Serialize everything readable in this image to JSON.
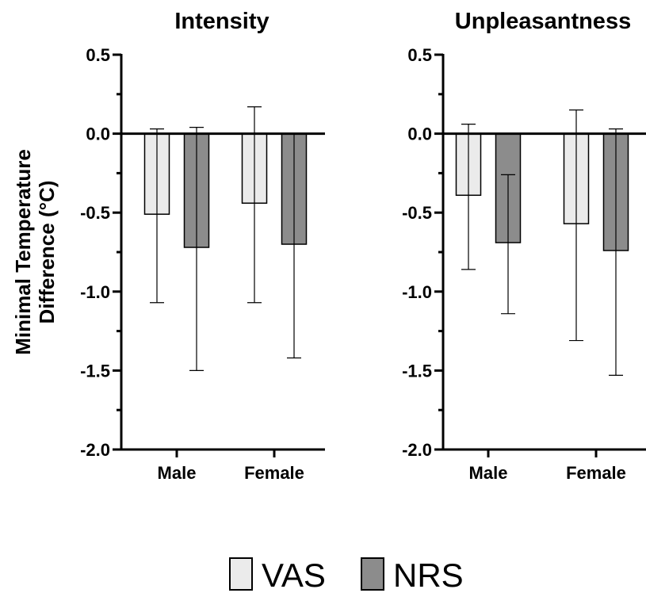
{
  "y_axis_title_lines": [
    "Minimal Temperature",
    "Difference (°C)"
  ],
  "colors": {
    "VAS": "#ebebeb",
    "NRS": "#8c8c8c",
    "axis": "#000000"
  },
  "chart_data": [
    {
      "type": "bar",
      "title": "Intensity",
      "categories": [
        "Male",
        "Female"
      ],
      "ylim": [
        -2.0,
        0.5
      ],
      "yticks": [
        "0.5",
        "0.0",
        "-0.5",
        "-1.0",
        "-1.5",
        "-2.0"
      ],
      "series": [
        {
          "name": "VAS",
          "values": [
            -0.51,
            -0.44
          ],
          "error_low": [
            -1.07,
            -1.07
          ],
          "error_high": [
            0.03,
            0.17
          ]
        },
        {
          "name": "NRS",
          "values": [
            -0.72,
            -0.7
          ],
          "error_low": [
            -1.5,
            -1.42
          ],
          "error_high": [
            0.04,
            0.0
          ]
        }
      ],
      "grid": false
    },
    {
      "type": "bar",
      "title": "Unpleasantness",
      "categories": [
        "Male",
        "Female"
      ],
      "ylim": [
        -2.0,
        0.5
      ],
      "yticks": [
        "0.5",
        "0.0",
        "-0.5",
        "-1.0",
        "-1.5",
        "-2.0"
      ],
      "series": [
        {
          "name": "VAS",
          "values": [
            -0.39,
            -0.57
          ],
          "error_low": [
            -0.86,
            -1.31
          ],
          "error_high": [
            0.06,
            0.15
          ]
        },
        {
          "name": "NRS",
          "values": [
            -0.69,
            -0.74
          ],
          "error_low": [
            -1.14,
            -1.53
          ],
          "error_high": [
            -0.26,
            0.03
          ]
        }
      ],
      "grid": false
    }
  ],
  "legend": {
    "position": "bottom-center",
    "items": [
      {
        "label": "VAS",
        "color": "#ebebeb"
      },
      {
        "label": "NRS",
        "color": "#8c8c8c"
      }
    ]
  }
}
